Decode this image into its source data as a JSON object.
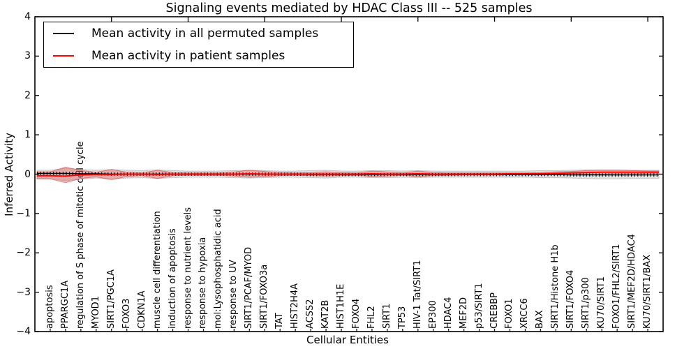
{
  "title": "Signaling events mediated by HDAC Class III -- 525 samples",
  "legend": {
    "items": [
      {
        "label": "Mean activity in all permuted samples",
        "color": "#000000"
      },
      {
        "label": "Mean activity in patient samples",
        "color": "#ff0000"
      }
    ]
  },
  "axes": {
    "ylabel": "Inferred Activity",
    "xlabel": "Cellular Entities",
    "yticks": [
      "4",
      "3",
      "2",
      "1",
      "0",
      "−1",
      "−2",
      "−3",
      "−4"
    ]
  },
  "chart_data": {
    "type": "line",
    "title": "Signaling events mediated by HDAC Class III -- 525 samples",
    "xlabel": "Cellular Entities",
    "ylabel": "Inferred Activity",
    "ylim": [
      -4,
      4
    ],
    "grid": false,
    "legend_position": "upper left",
    "categories": [
      "apoptosis",
      "PPARGC1A",
      "regulation of S phase of mitotic cell cycle",
      "MYOD1",
      "SIRT1/PGC1A",
      "FOXO3",
      "CDKN1A",
      "muscle cell differentiation",
      "induction of apoptosis",
      "response to nutrient levels",
      "response to hypoxia",
      "mol:Lysophosphatidic acid",
      "response to UV",
      "SIRT1/PCAF/MYOD",
      "SIRT1/FOXO3a",
      "TAT",
      "HIST2H4A",
      "ACSS2",
      "KAT2B",
      "HIST1H1E",
      "FOXO4",
      "FHL2",
      "SIRT1",
      "TP53",
      "HIV-1 Tat/SIRT1",
      "EP300",
      "HDAC4",
      "MEF2D",
      "p53/SIRT1",
      "CREBBP",
      "FOXO1",
      "XRCC6",
      "BAX",
      "SIRT1/Histone H1b",
      "SIRT1/FOXO4",
      "SIRT1/p300",
      "KU70/SIRT1",
      "FOXO1/FHL2/SIRT1",
      "SIRT1/MEF2D/HDAC4",
      "KU70/SIRT1/BAX"
    ],
    "series": [
      {
        "name": "Mean activity in all permuted samples",
        "color": "#000000",
        "values": [
          0.02,
          0.02,
          0.01,
          0.01,
          0.0,
          0.0,
          0.0,
          0.0,
          0.0,
          0.0,
          0.0,
          0.0,
          0.0,
          0.0,
          0.0,
          0.0,
          0.0,
          -0.01,
          -0.01,
          -0.01,
          -0.01,
          -0.01,
          -0.01,
          -0.01,
          -0.01,
          -0.01,
          -0.01,
          -0.01,
          -0.01,
          -0.01,
          -0.01,
          -0.01,
          -0.01,
          -0.01,
          -0.02,
          -0.02,
          -0.02,
          -0.02,
          -0.02,
          -0.02
        ]
      },
      {
        "name": "Mean activity in patient samples",
        "color": "#ff0000",
        "values": [
          -0.04,
          -0.05,
          -0.02,
          -0.01,
          -0.01,
          0.0,
          0.0,
          -0.01,
          0.0,
          0.0,
          0.0,
          0.0,
          0.0,
          0.01,
          0.0,
          0.0,
          0.0,
          0.0,
          0.0,
          0.0,
          0.0,
          0.01,
          0.0,
          0.0,
          0.01,
          0.0,
          0.0,
          0.0,
          0.0,
          0.0,
          0.01,
          0.01,
          0.01,
          0.02,
          0.03,
          0.04,
          0.05,
          0.05,
          0.05,
          0.05
        ]
      },
      {
        "name": "Permuted samples spread band",
        "color": "#bbbbbb",
        "upper": [
          0.1,
          0.15,
          0.12,
          0.1,
          0.12,
          0.1,
          0.09,
          0.11,
          0.09,
          0.08,
          0.08,
          0.08,
          0.09,
          0.1,
          0.09,
          0.08,
          0.08,
          0.09,
          0.1,
          0.08,
          0.08,
          0.09,
          0.09,
          0.08,
          0.09,
          0.08,
          0.08,
          0.08,
          0.08,
          0.08,
          0.08,
          0.08,
          0.09,
          0.09,
          0.1,
          0.11,
          0.11,
          0.11,
          0.1,
          0.1
        ],
        "lower": [
          -0.11,
          -0.17,
          -0.13,
          -0.1,
          -0.13,
          -0.1,
          -0.09,
          -0.11,
          -0.09,
          -0.08,
          -0.08,
          -0.08,
          -0.09,
          -0.1,
          -0.09,
          -0.08,
          -0.08,
          -0.09,
          -0.1,
          -0.08,
          -0.08,
          -0.09,
          -0.09,
          -0.08,
          -0.09,
          -0.08,
          -0.08,
          -0.08,
          -0.08,
          -0.08,
          -0.08,
          -0.08,
          -0.09,
          -0.09,
          -0.1,
          -0.11,
          -0.12,
          -0.12,
          -0.11,
          -0.11
        ]
      },
      {
        "name": "Patient samples spread band",
        "color": "#e84040",
        "upper": [
          0.06,
          0.18,
          0.09,
          0.05,
          0.12,
          0.05,
          0.03,
          0.1,
          0.04,
          0.03,
          0.03,
          0.03,
          0.06,
          0.1,
          0.07,
          0.04,
          0.03,
          0.04,
          0.06,
          0.04,
          0.03,
          0.08,
          0.06,
          0.03,
          0.08,
          0.04,
          0.03,
          0.03,
          0.03,
          0.03,
          0.03,
          0.03,
          0.04,
          0.06,
          0.07,
          0.09,
          0.1,
          0.1,
          0.09,
          0.08
        ],
        "lower": [
          -0.12,
          -0.22,
          -0.11,
          -0.07,
          -0.14,
          -0.06,
          -0.04,
          -0.11,
          -0.04,
          -0.03,
          -0.03,
          -0.03,
          -0.05,
          -0.08,
          -0.06,
          -0.04,
          -0.03,
          -0.04,
          -0.05,
          -0.04,
          -0.03,
          -0.06,
          -0.05,
          -0.03,
          -0.06,
          -0.04,
          -0.03,
          -0.02,
          -0.02,
          -0.02,
          -0.02,
          -0.02,
          -0.02,
          -0.01,
          -0.01,
          0.0,
          0.0,
          0.01,
          0.01,
          0.02
        ]
      }
    ]
  }
}
